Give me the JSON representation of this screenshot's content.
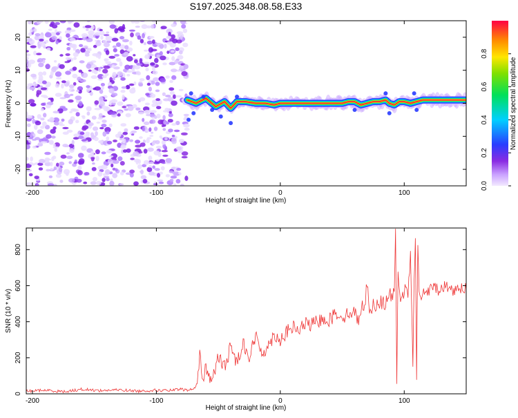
{
  "title": "S197.2025.348.08.58.E33",
  "chart_data": [
    {
      "type": "heatmap",
      "xlabel": "Height of straight line (km)",
      "ylabel": "Frequency (Hz)",
      "xlim": [
        -205,
        150
      ],
      "ylim": [
        -25,
        25
      ],
      "x_ticks": [
        -200,
        -100,
        0,
        100
      ],
      "x_tick_labels": [
        "-200",
        "-100",
        "0",
        "100"
      ],
      "y_ticks": [
        -20,
        -10,
        0,
        10,
        20
      ],
      "y_tick_labels": [
        "-20",
        "-10",
        "0",
        "10",
        "20"
      ],
      "noise_region_x": [
        -205,
        -75
      ],
      "signal_track": {
        "x": [
          -75,
          -68,
          -60,
          -52,
          -45,
          -40,
          -35,
          -28,
          -20,
          -12,
          -5,
          0,
          10,
          20,
          30,
          40,
          50,
          55,
          60,
          65,
          70,
          75,
          80,
          85,
          88,
          92,
          96,
          100,
          105,
          110,
          115,
          120,
          130,
          140,
          150
        ],
        "frequency": [
          1.0,
          0.0,
          1.5,
          -1.0,
          0.5,
          -1.5,
          0.5,
          0.5,
          0.0,
          0.0,
          -0.5,
          0.0,
          0.0,
          0.0,
          0.0,
          0.0,
          0.0,
          0.5,
          0.5,
          -0.5,
          0.0,
          0.5,
          0.5,
          1.0,
          0.0,
          -0.5,
          0.5,
          0.5,
          0.0,
          0.5,
          1.0,
          1.0,
          1.0,
          1.0,
          1.0
        ]
      },
      "colorbar": {
        "label": "Normalized spectral amplitude",
        "range": [
          0,
          1
        ],
        "ticks": [
          0.0,
          0.2,
          0.4,
          0.6,
          0.8
        ],
        "tick_labels": [
          "0.0",
          "0.2",
          "0.4",
          "0.6",
          "0.8"
        ]
      }
    },
    {
      "type": "line",
      "xlabel": "Height of straight line (km)",
      "ylabel": "SNR (10 * v/v)",
      "xlim": [
        -205,
        150
      ],
      "ylim": [
        0,
        920
      ],
      "x_ticks": [
        -200,
        -100,
        0,
        100
      ],
      "x_tick_labels": [
        "-200",
        "-100",
        "0",
        "100"
      ],
      "y_ticks": [
        0,
        200,
        400,
        600,
        800
      ],
      "y_tick_labels": [
        "0",
        "200",
        "400",
        "600",
        "800"
      ],
      "series": [
        {
          "name": "SNR",
          "color": "#ee3333",
          "x": [
            -205,
            -190,
            -175,
            -160,
            -145,
            -130,
            -115,
            -100,
            -90,
            -80,
            -75,
            -70,
            -67,
            -65,
            -63,
            -60,
            -58,
            -55,
            -50,
            -45,
            -40,
            -35,
            -30,
            -25,
            -20,
            -15,
            -10,
            -5,
            0,
            5,
            10,
            15,
            20,
            25,
            30,
            35,
            40,
            45,
            50,
            55,
            60,
            62,
            65,
            68,
            70,
            72,
            75,
            80,
            85,
            88,
            90,
            92,
            93,
            94,
            95,
            97,
            100,
            103,
            105,
            107,
            108,
            109,
            110,
            111,
            112,
            115,
            120,
            125,
            130,
            135,
            140,
            145,
            150
          ],
          "values": [
            15,
            20,
            12,
            25,
            18,
            22,
            15,
            20,
            18,
            25,
            20,
            25,
            60,
            220,
            80,
            150,
            100,
            80,
            200,
            150,
            260,
            170,
            290,
            200,
            320,
            230,
            260,
            330,
            300,
            340,
            370,
            350,
            390,
            380,
            400,
            420,
            410,
            450,
            430,
            440,
            470,
            380,
            480,
            490,
            610,
            470,
            490,
            510,
            500,
            560,
            520,
            600,
            880,
            50,
            690,
            530,
            570,
            560,
            760,
            150,
            620,
            900,
            100,
            850,
            530,
            560,
            570,
            590,
            580,
            600,
            570,
            600,
            580
          ]
        }
      ]
    }
  ]
}
